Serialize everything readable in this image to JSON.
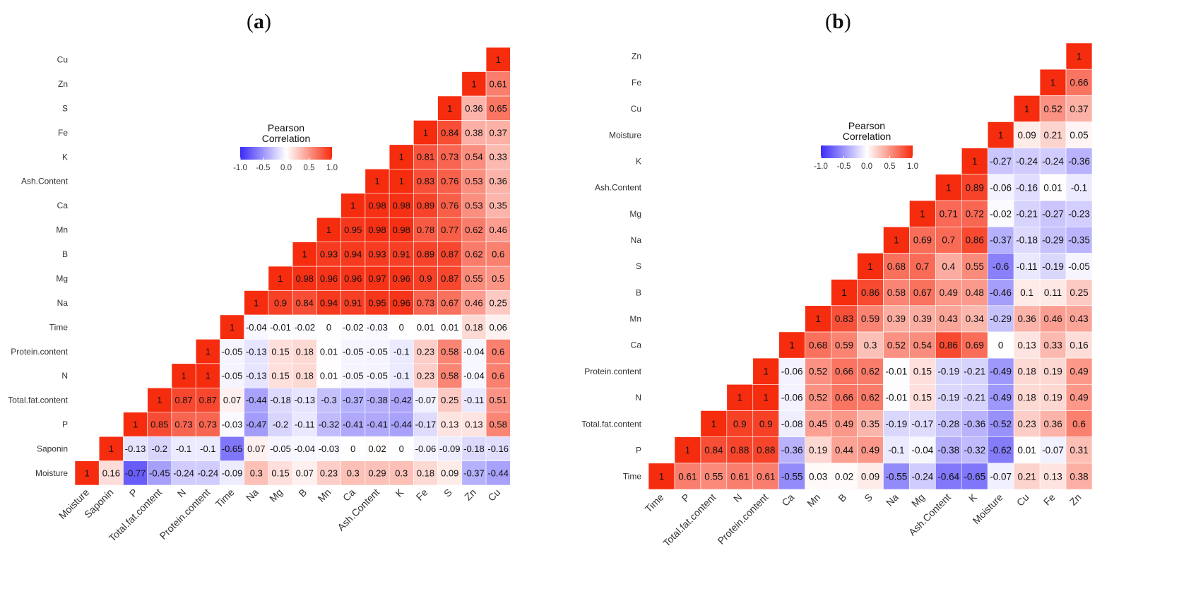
{
  "panels": {
    "a": {
      "open": "(",
      "letter": "a",
      "close": ")"
    },
    "b": {
      "open": "(",
      "letter": "b",
      "close": ")"
    }
  },
  "colors": {
    "low": "#3b2cf6",
    "mid": "#ffffff",
    "high": "#f62c0f"
  },
  "chart_data": [
    {
      "type": "heatmap",
      "title": "(a)",
      "legend_title": [
        "Pearson",
        "Correlation"
      ],
      "colorbar_ticks": [
        "-1.0",
        "-0.5",
        "0.0",
        "0.5",
        "1.0"
      ],
      "clim": [
        -1,
        1
      ],
      "variables": [
        "Moisture",
        "Saponin",
        "P",
        "Total.fat.content",
        "N",
        "Protein.content",
        "Time",
        "Na",
        "Mg",
        "B",
        "Mn",
        "Ca",
        "Ash.Content",
        "K",
        "Fe",
        "S",
        "Zn",
        "Cu"
      ],
      "columns": [
        [
          "1"
        ],
        [
          "0.16",
          "1"
        ],
        [
          "-0.77",
          "-0.13",
          "1"
        ],
        [
          "-0.45",
          "-0.2",
          "0.85",
          "1"
        ],
        [
          "-0.24",
          "-0.1",
          "0.73",
          "0.87",
          "1"
        ],
        [
          "-0.24",
          "-0.1",
          "0.73",
          "0.87",
          "1",
          "1"
        ],
        [
          "-0.09",
          "-0.65",
          "-0.03",
          "0.07",
          "-0.05",
          "-0.05",
          "1"
        ],
        [
          "0.3",
          "0.07",
          "-0.47",
          "-0.44",
          "-0.13",
          "-0.13",
          "-0.04",
          "1"
        ],
        [
          "0.15",
          "-0.05",
          "-0.2",
          "-0.18",
          "0.15",
          "0.15",
          "-0.01",
          "0.9",
          "1"
        ],
        [
          "0.07",
          "-0.04",
          "-0.11",
          "-0.13",
          "0.18",
          "0.18",
          "-0.02",
          "0.84",
          "0.98",
          "1"
        ],
        [
          "0.23",
          "-0.03",
          "-0.32",
          "-0.3",
          "0.01",
          "0.01",
          "0",
          "0.94",
          "0.96",
          "0.93",
          "1"
        ],
        [
          "0.3",
          "0",
          "-0.41",
          "-0.37",
          "-0.05",
          "-0.05",
          "-0.02",
          "0.91",
          "0.96",
          "0.94",
          "0.95",
          "1"
        ],
        [
          "0.29",
          "0.02",
          "-0.41",
          "-0.38",
          "-0.05",
          "-0.05",
          "-0.03",
          "0.95",
          "0.97",
          "0.93",
          "0.98",
          "0.98",
          "1"
        ],
        [
          "0.3",
          "0",
          "-0.44",
          "-0.42",
          "-0.1",
          "-0.1",
          "0",
          "0.96",
          "0.96",
          "0.91",
          "0.98",
          "0.98",
          "1",
          "1"
        ],
        [
          "0.18",
          "-0.06",
          "-0.17",
          "-0.07",
          "0.23",
          "0.23",
          "0.01",
          "0.73",
          "0.9",
          "0.89",
          "0.78",
          "0.89",
          "0.83",
          "0.81",
          "1"
        ],
        [
          "0.09",
          "-0.09",
          "0.13",
          "0.25",
          "0.58",
          "0.58",
          "0.01",
          "0.67",
          "0.87",
          "0.87",
          "0.77",
          "0.76",
          "0.76",
          "0.73",
          "0.84",
          "1"
        ],
        [
          "-0.37",
          "-0.18",
          "0.13",
          "-0.11",
          "-0.04",
          "-0.04",
          "0.18",
          "0.46",
          "0.55",
          "0.62",
          "0.62",
          "0.53",
          "0.53",
          "0.54",
          "0.38",
          "0.36",
          "1"
        ],
        [
          "-0.44",
          "-0.16",
          "0.58",
          "0.51",
          "0.6",
          "0.6",
          "0.06",
          "0.25",
          "0.5",
          "0.6",
          "0.46",
          "0.35",
          "0.36",
          "0.33",
          "0.37",
          "0.65",
          "0.61",
          "1"
        ]
      ]
    },
    {
      "type": "heatmap",
      "title": "(b)",
      "legend_title": [
        "Pearson",
        "Correlation"
      ],
      "colorbar_ticks": [
        "-1.0",
        "-0.5",
        "0.0",
        "0.5",
        "1.0"
      ],
      "clim": [
        -1,
        1
      ],
      "variables": [
        "Time",
        "P",
        "Total.fat.content",
        "N",
        "Protein.content",
        "Ca",
        "Mn",
        "B",
        "S",
        "Na",
        "Mg",
        "Ash.Content",
        "K",
        "Moisture",
        "Cu",
        "Fe",
        "Zn"
      ],
      "columns": [
        [
          "1"
        ],
        [
          "0.61",
          "1"
        ],
        [
          "0.55",
          "0.84",
          "1"
        ],
        [
          "0.61",
          "0.88",
          "0.9",
          "1"
        ],
        [
          "0.61",
          "0.88",
          "0.9",
          "1",
          "1"
        ],
        [
          "-0.55",
          "-0.36",
          "-0.08",
          "-0.06",
          "-0.06",
          "1"
        ],
        [
          "0.03",
          "0.19",
          "0.45",
          "0.52",
          "0.52",
          "0.68",
          "1"
        ],
        [
          "0.02",
          "0.44",
          "0.49",
          "0.66",
          "0.66",
          "0.59",
          "0.83",
          "1"
        ],
        [
          "0.09",
          "0.49",
          "0.35",
          "0.62",
          "0.62",
          "0.3",
          "0.59",
          "0.86",
          "1"
        ],
        [
          "-0.55",
          "-0.1",
          "-0.19",
          "-0.01",
          "-0.01",
          "0.52",
          "0.39",
          "0.58",
          "0.68",
          "1"
        ],
        [
          "-0.24",
          "-0.04",
          "-0.17",
          "0.15",
          "0.15",
          "0.54",
          "0.39",
          "0.67",
          "0.7",
          "0.69",
          "1"
        ],
        [
          "-0.64",
          "-0.38",
          "-0.28",
          "-0.19",
          "-0.19",
          "0.86",
          "0.43",
          "0.49",
          "0.4",
          "0.7",
          "0.71",
          "1"
        ],
        [
          "-0.65",
          "-0.32",
          "-0.36",
          "-0.21",
          "-0.21",
          "0.69",
          "0.34",
          "0.48",
          "0.55",
          "0.86",
          "0.72",
          "0.89",
          "1"
        ],
        [
          "-0.07",
          "-0.62",
          "-0.52",
          "-0.49",
          "-0.49",
          "0",
          "-0.29",
          "-0.46",
          "-0.6",
          "-0.37",
          "-0.02",
          "-0.06",
          "-0.27",
          "1"
        ],
        [
          "0.21",
          "0.01",
          "0.23",
          "0.18",
          "0.18",
          "0.13",
          "0.36",
          "0.1",
          "-0.11",
          "-0.18",
          "-0.21",
          "-0.16",
          "-0.24",
          "0.09",
          "1"
        ],
        [
          "0.13",
          "-0.07",
          "0.36",
          "0.19",
          "0.19",
          "0.33",
          "0.46",
          "0.11",
          "-0.19",
          "-0.29",
          "-0.27",
          "0.01",
          "-0.24",
          "0.21",
          "0.52",
          "1"
        ],
        [
          "0.38",
          "0.31",
          "0.6",
          "0.49",
          "0.49",
          "0.16",
          "0.43",
          "0.25",
          "-0.05",
          "-0.35",
          "-0.23",
          "-0.1",
          "-0.36",
          "0.05",
          "0.37",
          "0.66",
          "1"
        ]
      ]
    }
  ]
}
